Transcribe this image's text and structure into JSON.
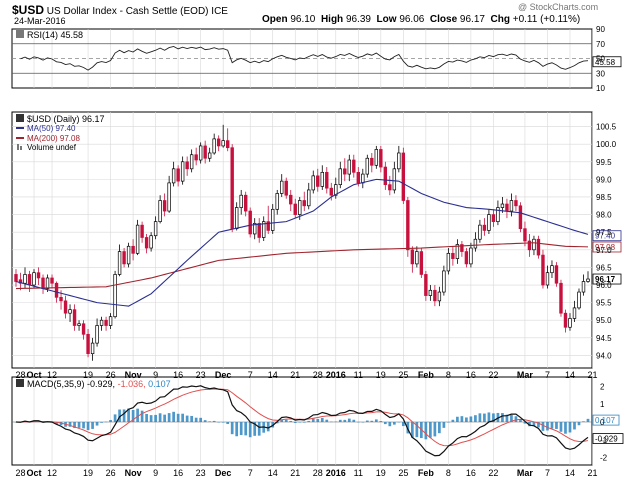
{
  "header": {
    "symbol": "$USD",
    "name": "US Dollar Index - Cash Settle (EOD)",
    "exchange": "ICE",
    "date": "24-Mar-2016",
    "watermark": "@ StockCharts.com",
    "quote": {
      "open_label": "Open",
      "open": "96.10",
      "high_label": "High",
      "high": "96.39",
      "low_label": "Low",
      "low": "96.06",
      "close_label": "Close",
      "close": "96.17",
      "chg_label": "Chg",
      "chg": "+0.11 (+0.11%)"
    }
  },
  "rsi": {
    "legend": "RSI(14) 45.58",
    "ticks": [
      "90",
      "70",
      "50",
      "30",
      "10"
    ],
    "last_label": "45.58"
  },
  "price": {
    "legend_main": "$USD (Daily) 96.17",
    "legend_ma50": "MA(50) 97.40",
    "legend_ma200": "MA(200) 97.08",
    "legend_volume": "Volume undef",
    "ticks": [
      "100.5",
      "100.0",
      "99.5",
      "99.0",
      "98.5",
      "98.0",
      "97.5",
      "97.0",
      "96.5",
      "96.0",
      "95.5",
      "95.0",
      "94.5",
      "94.0"
    ],
    "ma50_label": "97.40",
    "ma200_label": "97.08",
    "last_label": "96.17"
  },
  "macd": {
    "legend_name": "MACD(5,35,9)",
    "legend_macd": "-0.929,",
    "legend_signal": "-1.036,",
    "legend_hist": "0.107",
    "ticks": [
      "2",
      "1",
      "0",
      "-1",
      "-2"
    ],
    "hist_label": "0.107",
    "macd_label": "-0.929"
  },
  "x_labels": [
    "28",
    "Oct",
    "12",
    "19",
    "26",
    "Nov",
    "9",
    "16",
    "23",
    "Dec",
    "7",
    "14",
    "21",
    "28",
    "2016",
    "11",
    "19",
    "25",
    "Feb",
    "8",
    "16",
    "22",
    "Mar",
    "7",
    "14",
    "21"
  ],
  "colors": {
    "up_candle": "#000000",
    "down_candle": "#c8103e",
    "ma50": "#2b2f8f",
    "ma200": "#a0242e",
    "histogram": "#2e86c1",
    "signal": "#e05050",
    "grid": "#d8d8d8",
    "frame": "#000000"
  },
  "chart_data": [
    {
      "type": "line",
      "name": "RSI(14)",
      "ylim": [
        10,
        90
      ],
      "reference_lines": [
        70,
        50,
        30
      ],
      "last": 45.58
    },
    {
      "type": "candlestick",
      "title": "$USD (Daily) 96.17",
      "ylim": [
        93.7,
        100.8
      ],
      "x_start": "2015-09-22",
      "x_end": "2016-03-24",
      "candles": [
        {
          "o": 96.3,
          "c": 96.1,
          "h": 96.45,
          "l": 95.95
        },
        {
          "o": 96.15,
          "c": 96.05,
          "h": 96.35,
          "l": 95.85
        },
        {
          "o": 96.05,
          "c": 96.3,
          "h": 96.5,
          "l": 95.9
        },
        {
          "o": 96.3,
          "c": 96.0,
          "h": 96.4,
          "l": 95.8
        },
        {
          "o": 96.0,
          "c": 96.35,
          "h": 96.45,
          "l": 95.9
        },
        {
          "o": 96.35,
          "c": 96.2,
          "h": 96.5,
          "l": 96.0
        },
        {
          "o": 96.2,
          "c": 95.9,
          "h": 96.3,
          "l": 95.75
        },
        {
          "o": 95.9,
          "c": 96.2,
          "h": 96.3,
          "l": 95.8
        },
        {
          "o": 96.2,
          "c": 96.05,
          "h": 96.3,
          "l": 95.9
        },
        {
          "o": 96.05,
          "c": 95.65,
          "h": 96.1,
          "l": 95.5
        },
        {
          "o": 95.65,
          "c": 95.55,
          "h": 95.85,
          "l": 95.3
        },
        {
          "o": 95.55,
          "c": 95.2,
          "h": 95.7,
          "l": 95.05
        },
        {
          "o": 95.2,
          "c": 95.3,
          "h": 95.45,
          "l": 94.95
        },
        {
          "o": 95.3,
          "c": 94.85,
          "h": 95.45,
          "l": 94.7
        },
        {
          "o": 94.85,
          "c": 94.9,
          "h": 95.0,
          "l": 94.7
        },
        {
          "o": 94.9,
          "c": 94.6,
          "h": 95.0,
          "l": 94.45
        },
        {
          "o": 94.6,
          "c": 94.05,
          "h": 94.75,
          "l": 93.95
        },
        {
          "o": 94.05,
          "c": 94.35,
          "h": 94.5,
          "l": 93.85
        },
        {
          "o": 94.35,
          "c": 94.85,
          "h": 95.05,
          "l": 94.25
        },
        {
          "o": 94.85,
          "c": 95.0,
          "h": 95.1,
          "l": 94.7
        },
        {
          "o": 95.0,
          "c": 94.85,
          "h": 95.1,
          "l": 94.7
        },
        {
          "o": 94.85,
          "c": 95.1,
          "h": 95.2,
          "l": 94.75
        },
        {
          "o": 95.1,
          "c": 96.3,
          "h": 96.4,
          "l": 95.05
        },
        {
          "o": 96.3,
          "c": 96.95,
          "h": 97.15,
          "l": 96.25
        },
        {
          "o": 96.95,
          "c": 96.6,
          "h": 97.05,
          "l": 96.5
        },
        {
          "o": 96.6,
          "c": 97.1,
          "h": 97.2,
          "l": 96.5
        },
        {
          "o": 97.1,
          "c": 96.9,
          "h": 97.3,
          "l": 96.7
        },
        {
          "o": 96.9,
          "c": 97.7,
          "h": 97.85,
          "l": 96.85
        },
        {
          "o": 97.7,
          "c": 97.35,
          "h": 97.8,
          "l": 97.2
        },
        {
          "o": 97.35,
          "c": 97.05,
          "h": 97.45,
          "l": 96.9
        },
        {
          "o": 97.05,
          "c": 97.4,
          "h": 97.5,
          "l": 96.95
        },
        {
          "o": 97.4,
          "c": 97.8,
          "h": 97.95,
          "l": 97.3
        },
        {
          "o": 97.8,
          "c": 98.4,
          "h": 98.55,
          "l": 97.75
        },
        {
          "o": 98.4,
          "c": 98.1,
          "h": 98.6,
          "l": 97.95
        },
        {
          "o": 98.1,
          "c": 98.9,
          "h": 99.1,
          "l": 98.05
        },
        {
          "o": 98.9,
          "c": 99.3,
          "h": 99.5,
          "l": 98.8
        },
        {
          "o": 99.3,
          "c": 98.95,
          "h": 99.4,
          "l": 98.8
        },
        {
          "o": 98.95,
          "c": 99.5,
          "h": 99.65,
          "l": 98.85
        },
        {
          "o": 99.5,
          "c": 99.3,
          "h": 99.65,
          "l": 99.1
        },
        {
          "o": 99.3,
          "c": 99.7,
          "h": 99.85,
          "l": 99.2
        },
        {
          "o": 99.7,
          "c": 99.55,
          "h": 99.9,
          "l": 99.4
        },
        {
          "o": 99.55,
          "c": 99.95,
          "h": 100.05,
          "l": 99.45
        },
        {
          "o": 99.95,
          "c": 99.6,
          "h": 100.1,
          "l": 99.45
        },
        {
          "o": 99.6,
          "c": 99.75,
          "h": 99.9,
          "l": 99.5
        },
        {
          "o": 99.75,
          "c": 100.15,
          "h": 100.3,
          "l": 99.7
        },
        {
          "o": 100.15,
          "c": 99.95,
          "h": 100.25,
          "l": 99.8
        },
        {
          "o": 99.95,
          "c": 100.1,
          "h": 100.55,
          "l": 99.9
        },
        {
          "o": 100.1,
          "c": 99.9,
          "h": 100.45,
          "l": 99.8
        },
        {
          "o": 99.9,
          "c": 97.6,
          "h": 100.0,
          "l": 97.5
        },
        {
          "o": 97.6,
          "c": 98.2,
          "h": 98.35,
          "l": 97.55
        },
        {
          "o": 98.2,
          "c": 98.55,
          "h": 98.7,
          "l": 98.0
        },
        {
          "o": 98.55,
          "c": 98.1,
          "h": 98.65,
          "l": 97.95
        },
        {
          "o": 98.1,
          "c": 97.45,
          "h": 98.2,
          "l": 97.35
        },
        {
          "o": 97.45,
          "c": 97.75,
          "h": 97.9,
          "l": 97.3
        },
        {
          "o": 97.75,
          "c": 97.35,
          "h": 97.9,
          "l": 97.2
        },
        {
          "o": 97.35,
          "c": 97.8,
          "h": 97.95,
          "l": 97.25
        },
        {
          "o": 97.8,
          "c": 97.55,
          "h": 98.25,
          "l": 97.45
        },
        {
          "o": 97.55,
          "c": 98.15,
          "h": 98.3,
          "l": 97.45
        },
        {
          "o": 98.15,
          "c": 98.6,
          "h": 98.7,
          "l": 98.0
        },
        {
          "o": 98.6,
          "c": 98.95,
          "h": 99.15,
          "l": 98.5
        },
        {
          "o": 98.95,
          "c": 98.55,
          "h": 99.05,
          "l": 98.45
        },
        {
          "o": 98.55,
          "c": 98.3,
          "h": 98.7,
          "l": 98.1
        },
        {
          "o": 98.3,
          "c": 98.0,
          "h": 98.45,
          "l": 97.9
        },
        {
          "o": 98.0,
          "c": 98.4,
          "h": 98.5,
          "l": 97.85
        },
        {
          "o": 98.4,
          "c": 98.25,
          "h": 98.65,
          "l": 98.1
        },
        {
          "o": 98.25,
          "c": 98.7,
          "h": 98.9,
          "l": 98.15
        },
        {
          "o": 98.7,
          "c": 99.1,
          "h": 99.25,
          "l": 98.6
        },
        {
          "o": 99.1,
          "c": 98.8,
          "h": 99.3,
          "l": 98.65
        },
        {
          "o": 98.8,
          "c": 99.2,
          "h": 99.4,
          "l": 98.7
        },
        {
          "o": 99.2,
          "c": 98.75,
          "h": 99.35,
          "l": 98.6
        },
        {
          "o": 98.75,
          "c": 98.55,
          "h": 98.9,
          "l": 98.4
        },
        {
          "o": 98.55,
          "c": 98.85,
          "h": 99.05,
          "l": 98.45
        },
        {
          "o": 98.85,
          "c": 99.3,
          "h": 99.5,
          "l": 98.75
        },
        {
          "o": 99.3,
          "c": 99.15,
          "h": 99.6,
          "l": 98.95
        },
        {
          "o": 99.15,
          "c": 99.55,
          "h": 99.7,
          "l": 98.95
        },
        {
          "o": 99.55,
          "c": 99.2,
          "h": 99.7,
          "l": 99.05
        },
        {
          "o": 99.2,
          "c": 98.9,
          "h": 99.35,
          "l": 98.8
        },
        {
          "o": 98.9,
          "c": 99.15,
          "h": 99.3,
          "l": 98.75
        },
        {
          "o": 99.15,
          "c": 99.6,
          "h": 99.7,
          "l": 99.05
        },
        {
          "o": 99.6,
          "c": 99.4,
          "h": 99.75,
          "l": 99.2
        },
        {
          "o": 99.4,
          "c": 99.85,
          "h": 99.95,
          "l": 99.3
        },
        {
          "o": 99.85,
          "c": 99.35,
          "h": 99.95,
          "l": 99.2
        },
        {
          "o": 99.35,
          "c": 98.85,
          "h": 99.5,
          "l": 98.7
        },
        {
          "o": 98.85,
          "c": 98.7,
          "h": 99.1,
          "l": 98.55
        },
        {
          "o": 98.7,
          "c": 99.3,
          "h": 99.5,
          "l": 98.6
        },
        {
          "o": 99.3,
          "c": 99.75,
          "h": 99.95,
          "l": 99.2
        },
        {
          "o": 99.75,
          "c": 98.4,
          "h": 99.9,
          "l": 98.3
        },
        {
          "o": 98.4,
          "c": 97.0,
          "h": 98.5,
          "l": 96.8
        },
        {
          "o": 97.0,
          "c": 96.6,
          "h": 97.1,
          "l": 96.35
        },
        {
          "o": 96.6,
          "c": 96.95,
          "h": 97.1,
          "l": 96.5
        },
        {
          "o": 96.95,
          "c": 96.3,
          "h": 97.05,
          "l": 96.2
        },
        {
          "o": 96.3,
          "c": 95.7,
          "h": 96.4,
          "l": 95.55
        },
        {
          "o": 95.7,
          "c": 95.85,
          "h": 96.0,
          "l": 95.55
        },
        {
          "o": 95.85,
          "c": 95.55,
          "h": 96.0,
          "l": 95.4
        },
        {
          "o": 95.55,
          "c": 95.8,
          "h": 95.95,
          "l": 95.4
        },
        {
          "o": 95.8,
          "c": 96.4,
          "h": 96.55,
          "l": 95.7
        },
        {
          "o": 96.4,
          "c": 96.9,
          "h": 97.05,
          "l": 96.3
        },
        {
          "o": 96.9,
          "c": 96.75,
          "h": 97.1,
          "l": 96.55
        },
        {
          "o": 96.75,
          "c": 97.15,
          "h": 97.3,
          "l": 96.6
        },
        {
          "o": 97.15,
          "c": 96.95,
          "h": 97.25,
          "l": 96.8
        },
        {
          "o": 96.95,
          "c": 96.6,
          "h": 97.05,
          "l": 96.5
        },
        {
          "o": 96.6,
          "c": 97.05,
          "h": 97.2,
          "l": 96.5
        },
        {
          "o": 97.05,
          "c": 97.3,
          "h": 97.5,
          "l": 96.95
        },
        {
          "o": 97.3,
          "c": 97.7,
          "h": 97.85,
          "l": 97.2
        },
        {
          "o": 97.7,
          "c": 97.55,
          "h": 97.9,
          "l": 97.4
        },
        {
          "o": 97.55,
          "c": 98.0,
          "h": 98.15,
          "l": 97.45
        },
        {
          "o": 98.0,
          "c": 97.8,
          "h": 98.15,
          "l": 97.65
        },
        {
          "o": 97.8,
          "c": 98.2,
          "h": 98.4,
          "l": 97.7
        },
        {
          "o": 98.2,
          "c": 98.3,
          "h": 98.5,
          "l": 98.05
        },
        {
          "o": 98.3,
          "c": 98.1,
          "h": 98.45,
          "l": 97.9
        },
        {
          "o": 98.1,
          "c": 98.4,
          "h": 98.6,
          "l": 97.95
        },
        {
          "o": 98.4,
          "c": 98.25,
          "h": 98.55,
          "l": 98.1
        },
        {
          "o": 98.25,
          "c": 97.6,
          "h": 98.35,
          "l": 97.5
        },
        {
          "o": 97.6,
          "c": 97.25,
          "h": 97.8,
          "l": 97.1
        },
        {
          "o": 97.25,
          "c": 97.0,
          "h": 97.45,
          "l": 96.8
        },
        {
          "o": 97.0,
          "c": 97.3,
          "h": 97.4,
          "l": 96.85
        },
        {
          "o": 97.3,
          "c": 96.85,
          "h": 97.4,
          "l": 96.75
        },
        {
          "o": 96.85,
          "c": 96.0,
          "h": 97.0,
          "l": 95.9
        },
        {
          "o": 96.0,
          "c": 96.35,
          "h": 96.55,
          "l": 95.9
        },
        {
          "o": 96.35,
          "c": 96.55,
          "h": 96.7,
          "l": 96.2
        },
        {
          "o": 96.55,
          "c": 96.05,
          "h": 96.65,
          "l": 95.95
        },
        {
          "o": 96.05,
          "c": 95.2,
          "h": 96.15,
          "l": 95.1
        },
        {
          "o": 95.2,
          "c": 94.8,
          "h": 95.3,
          "l": 94.65
        },
        {
          "o": 94.8,
          "c": 95.05,
          "h": 95.2,
          "l": 94.7
        },
        {
          "o": 95.05,
          "c": 95.35,
          "h": 95.55,
          "l": 94.95
        },
        {
          "o": 95.35,
          "c": 95.8,
          "h": 95.9,
          "l": 95.3
        },
        {
          "o": 95.8,
          "c": 96.1,
          "h": 96.3,
          "l": 95.7
        },
        {
          "o": 96.1,
          "c": 96.17,
          "h": 96.39,
          "l": 96.06
        }
      ],
      "ma50": [
        [
          0,
          96.1
        ],
        [
          18,
          95.5
        ],
        [
          25,
          95.4
        ],
        [
          30,
          95.75
        ],
        [
          38,
          96.7
        ],
        [
          45,
          97.5
        ],
        [
          52,
          97.7
        ],
        [
          60,
          97.8
        ],
        [
          66,
          98.1
        ],
        [
          70,
          98.5
        ],
        [
          75,
          98.85
        ],
        [
          80,
          99.0
        ],
        [
          85,
          98.95
        ],
        [
          90,
          98.6
        ],
        [
          95,
          98.35
        ],
        [
          100,
          98.2
        ],
        [
          105,
          98.15
        ],
        [
          112,
          98.05
        ],
        [
          118,
          97.8
        ],
        [
          124,
          97.55
        ],
        [
          128,
          97.4
        ]
      ],
      "ma200": [
        [
          0,
          95.9
        ],
        [
          20,
          95.95
        ],
        [
          30,
          96.2
        ],
        [
          45,
          96.7
        ],
        [
          60,
          96.9
        ],
        [
          75,
          97.0
        ],
        [
          90,
          97.05
        ],
        [
          105,
          97.15
        ],
        [
          115,
          97.2
        ],
        [
          122,
          97.1
        ],
        [
          128,
          97.08
        ]
      ]
    },
    {
      "type": "line",
      "name": "MACD(5,35,9)",
      "ylim": [
        -2.3,
        2.3
      ],
      "macd_last": -0.929,
      "signal_last": -1.036,
      "histogram_last": 0.107
    }
  ]
}
